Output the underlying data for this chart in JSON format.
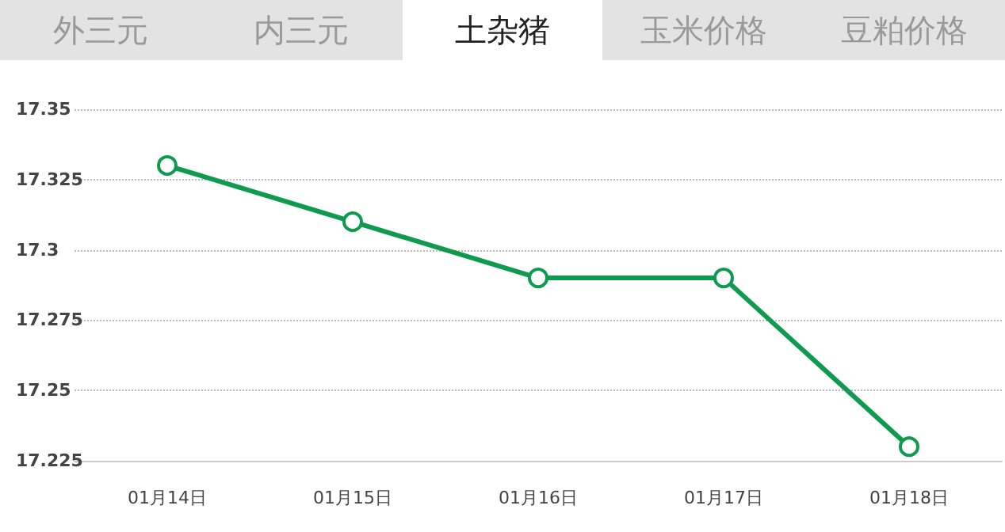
{
  "chart_data": {
    "type": "line",
    "title": "土杂猪",
    "annotations": [
      "外三元",
      "内三元",
      "玉米价格",
      "豆粕价格"
    ],
    "categories": [
      "01月14日",
      "01月15日",
      "01月16日",
      "01月17日",
      "01月18日"
    ],
    "series": [
      {
        "color": "#0e9b4f",
        "values": [
          17.33,
          17.31,
          17.29,
          17.29,
          17.23
        ]
      }
    ],
    "ylim": [
      17.225,
      17.35
    ],
    "yticks": [
      17.225,
      17.25,
      17.275,
      17.3,
      17.325,
      17.35
    ],
    "grid": "y",
    "marker": "circle",
    "line_style": "solid"
  }
}
